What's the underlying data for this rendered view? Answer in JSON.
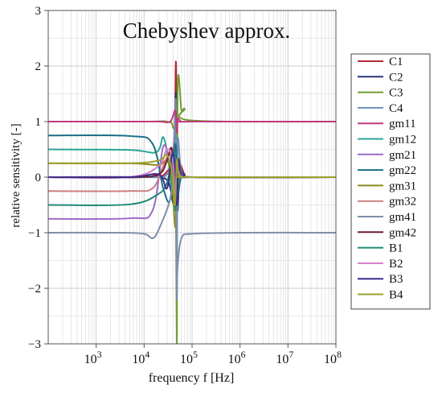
{
  "chart_data": {
    "type": "line",
    "title": "Chebyshev approx.",
    "xlabel": "frequency f [Hz]",
    "ylabel": "relative sensitivity [-]",
    "xscale": "log",
    "xlim": [
      100,
      100000000
    ],
    "ylim": [
      -3,
      3
    ],
    "x_tick_values": [
      1000,
      10000,
      100000,
      1000000,
      10000000,
      100000000
    ],
    "x_tick_labels": [
      {
        "base": "10",
        "exp": "3"
      },
      {
        "base": "10",
        "exp": "4"
      },
      {
        "base": "10",
        "exp": "5"
      },
      {
        "base": "10",
        "exp": "6"
      },
      {
        "base": "10",
        "exp": "7"
      },
      {
        "base": "10",
        "exp": "8"
      }
    ],
    "y_ticks": [
      -3,
      -2,
      -1,
      0,
      1,
      2,
      3
    ],
    "y_tick_labels": [
      "−3",
      "−2",
      "−1",
      "0",
      "1",
      "2",
      "3"
    ],
    "grid": true,
    "legend_position": "right",
    "series": [
      {
        "name": "C1",
        "color": "#b3283a",
        "x": [
          100,
          10000,
          30000,
          42000,
          46000,
          48000,
          50000,
          55000,
          70000,
          100000,
          100000000
        ],
        "y": [
          0,
          0,
          0.1,
          0.6,
          2.08,
          0.4,
          -0.5,
          0.2,
          0.05,
          0,
          0
        ]
      },
      {
        "name": "C2",
        "color": "#27367a",
        "x": [
          100,
          10000,
          30000,
          42000,
          46000,
          48000,
          50000,
          55000,
          70000,
          100000,
          100000000
        ],
        "y": [
          0,
          0,
          -0.05,
          -0.4,
          1.5,
          0.5,
          -0.6,
          0.1,
          0.03,
          0,
          0
        ]
      },
      {
        "name": "C3",
        "color": "#6f9e2e",
        "x": [
          100,
          10000,
          30000,
          40000,
          45000,
          48000,
          50000,
          60000,
          70000,
          100000,
          100000000
        ],
        "y": [
          1,
          1,
          1,
          0.9,
          0.4,
          -3.0,
          1.6,
          1.2,
          1.23,
          1.02,
          1
        ]
      },
      {
        "name": "C4",
        "color": "#6a8fb8",
        "x": [
          100,
          10000,
          30000,
          42000,
          46000,
          48000,
          50000,
          60000,
          100000,
          100000000
        ],
        "y": [
          0,
          0,
          0.05,
          0.5,
          1.3,
          -2.2,
          0.6,
          0.1,
          0,
          0
        ]
      },
      {
        "name": "gm11",
        "color": "#c0397f",
        "x": [
          100,
          5000,
          20000,
          35000,
          45000,
          48000,
          50000,
          60000,
          100000,
          100000000
        ],
        "y": [
          1,
          1,
          1,
          1,
          1.2,
          0.8,
          1.05,
          1,
          1,
          1
        ]
      },
      {
        "name": "gm12",
        "color": "#2aa596",
        "x": [
          100,
          5000,
          18000,
          25000,
          32000,
          38000,
          45000,
          50000,
          60000,
          100000,
          100000000
        ],
        "y": [
          0.5,
          0.49,
          0.45,
          0.72,
          0.3,
          -0.2,
          0.4,
          -0.1,
          0,
          0,
          0
        ]
      },
      {
        "name": "gm21",
        "color": "#9a6bc6",
        "x": [
          100,
          5000,
          15000,
          25000,
          35000,
          45000,
          50000,
          60000,
          100000,
          100000000
        ],
        "y": [
          -0.75,
          -0.74,
          -0.6,
          0.55,
          0.2,
          -0.2,
          0.15,
          0,
          0,
          0
        ]
      },
      {
        "name": "gm22",
        "color": "#1a6f86",
        "x": [
          100,
          5000,
          15000,
          25000,
          35000,
          45000,
          50000,
          60000,
          100000,
          100000000
        ],
        "y": [
          0.75,
          0.74,
          0.6,
          -0.2,
          -0.4,
          0.6,
          -0.3,
          0,
          0,
          0
        ]
      },
      {
        "name": "gm31",
        "color": "#8b8a1f",
        "x": [
          100,
          5000,
          20000,
          30000,
          38000,
          45000,
          50000,
          60000,
          100000,
          100000000
        ],
        "y": [
          0.25,
          0.25,
          0.22,
          0.3,
          -0.05,
          -0.9,
          0.3,
          0.05,
          0,
          0
        ]
      },
      {
        "name": "gm32",
        "color": "#c98080",
        "x": [
          100,
          5000,
          15000,
          25000,
          35000,
          45000,
          50000,
          60000,
          100000,
          100000000
        ],
        "y": [
          -0.25,
          -0.25,
          -0.2,
          0.2,
          0.4,
          -0.3,
          0.2,
          0,
          0,
          0
        ]
      },
      {
        "name": "gm41",
        "color": "#7f8eaa",
        "x": [
          100,
          3000,
          10000,
          15000,
          20000,
          35000,
          45000,
          48000,
          50000,
          60000,
          100000,
          1000000,
          100000000
        ],
        "y": [
          -1,
          -1,
          -1.02,
          -1.1,
          -0.95,
          -0.4,
          0.2,
          -2.0,
          -1.6,
          -1.1,
          -1.02,
          -1,
          -1
        ]
      },
      {
        "name": "gm42",
        "color": "#6b1e2e",
        "x": [
          100,
          5000,
          20000,
          30000,
          38000,
          45000,
          50000,
          60000,
          100000,
          100000000
        ],
        "y": [
          0,
          0,
          0.05,
          0.3,
          0.5,
          -0.4,
          0.2,
          0,
          0,
          0
        ]
      },
      {
        "name": "B1",
        "color": "#1f8a76",
        "x": [
          100,
          5000,
          20000,
          30000,
          40000,
          45000,
          50000,
          60000,
          100000,
          100000000
        ],
        "y": [
          -0.5,
          -0.49,
          -0.3,
          -0.1,
          0.3,
          -0.6,
          0.2,
          0,
          0,
          0
        ]
      },
      {
        "name": "B2",
        "color": "#d27ec8",
        "x": [
          100,
          5000,
          20000,
          30000,
          40000,
          45000,
          50000,
          60000,
          100000,
          100000000
        ],
        "y": [
          0,
          0,
          0.2,
          0.5,
          0.3,
          -0.4,
          0.1,
          0,
          0,
          0
        ]
      },
      {
        "name": "B3",
        "color": "#3d2a8a",
        "x": [
          100,
          5000,
          20000,
          30000,
          38000,
          44000,
          48000,
          52000,
          60000,
          100000,
          100000000
        ],
        "y": [
          0,
          0,
          0.05,
          -0.2,
          0.4,
          0.2,
          -0.5,
          0.3,
          0.05,
          0,
          0
        ]
      },
      {
        "name": "B4",
        "color": "#9ba12c",
        "x": [
          100,
          5000,
          20000,
          30000,
          38000,
          44000,
          48000,
          52000,
          60000,
          100000,
          100000000
        ],
        "y": [
          0.25,
          0.25,
          0.3,
          0.4,
          0.1,
          -0.5,
          0.3,
          0.05,
          0.02,
          0,
          0
        ]
      }
    ]
  }
}
